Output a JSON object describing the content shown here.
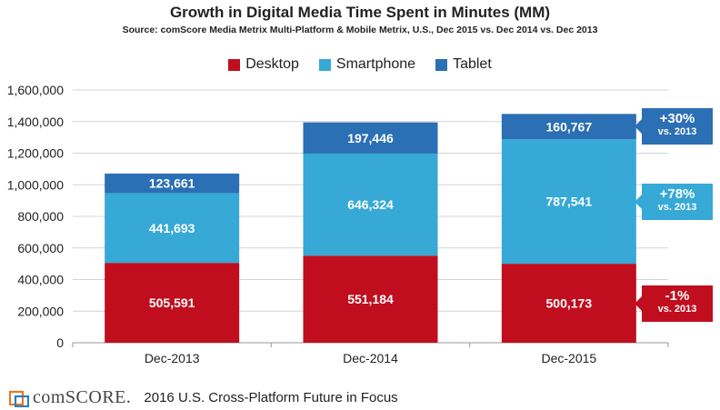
{
  "chart_data": {
    "type": "bar",
    "stacked": true,
    "title": "Growth in Digital Media Time Spent in Minutes (MM)",
    "subtitle": "Source: comScore Media Metrix Multi-Platform & Mobile Metrix, U.S., Dec 2015 vs. Dec 2014 vs. Dec 2013",
    "categories": [
      "Dec-2013",
      "Dec-2014",
      "Dec-2015"
    ],
    "series": [
      {
        "name": "Desktop",
        "color": "#c00e1e",
        "values": [
          505591,
          551184,
          500173
        ],
        "labels": [
          "505,591",
          "551,184",
          "500,173"
        ]
      },
      {
        "name": "Smartphone",
        "color": "#36a9d6",
        "values": [
          441693,
          646324,
          787541
        ],
        "labels": [
          "441,693",
          "646,324",
          "787,541"
        ]
      },
      {
        "name": "Tablet",
        "color": "#2b6fb4",
        "values": [
          123661,
          197446,
          160767
        ],
        "labels": [
          "123,661",
          "197,446",
          "160,767"
        ]
      }
    ],
    "ylim": [
      0,
      1600000
    ],
    "yticks": [
      "0",
      "200,000",
      "400,000",
      "600,000",
      "800,000",
      "1,000,000",
      "1,200,000",
      "1,400,000",
      "1,600,000"
    ],
    "grid": true,
    "legend_position": "top-center",
    "annotations": [
      {
        "series": "Tablet",
        "text": "+30%",
        "sub": "vs. 2013",
        "color": "#2b6fb4"
      },
      {
        "series": "Smartphone",
        "text": "+78%",
        "sub": "vs. 2013",
        "color": "#36a9d6"
      },
      {
        "series": "Desktop",
        "text": "-1%",
        "sub": "vs. 2013",
        "color": "#c00e1e"
      }
    ]
  },
  "footer": {
    "logo_text": "comSCORE.",
    "caption": "2016 U.S. Cross-Platform Future in Focus",
    "logo_icon": "comscore-logo-icon"
  }
}
